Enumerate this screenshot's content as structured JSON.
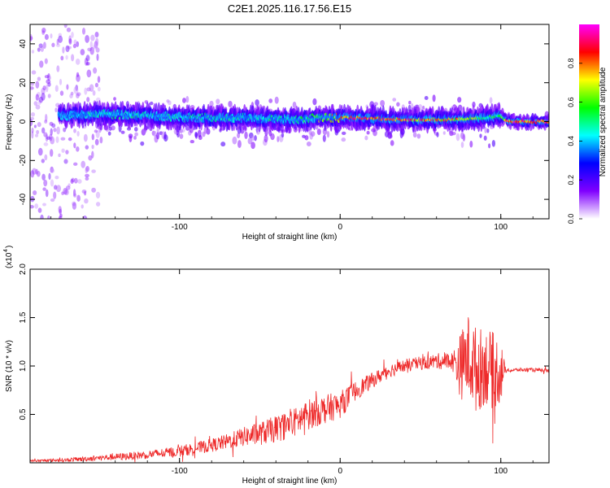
{
  "figure_title": "C2E1.2025.116.17.56.E15",
  "chart_data": [
    {
      "type": "heatmap",
      "title": "",
      "xlabel": "Height of straight line (km)",
      "ylabel": "Frequency (Hz)",
      "xlim": [
        -193,
        130
      ],
      "ylim": [
        -50,
        50
      ],
      "x_ticks": [
        -100,
        0,
        100
      ],
      "y_ticks": [
        -40,
        -20,
        0,
        20,
        40
      ],
      "colorbar": {
        "label": "Normalized spectral amplitude",
        "range": [
          0,
          1
        ],
        "ticks": [
          "0.0",
          "0.2",
          "0.4",
          "0.6",
          "0.8"
        ],
        "colors": [
          "#ffffff",
          "#8000ff",
          "#0000ff",
          "#00ffff",
          "#00ff00",
          "#ffff00",
          "#ff0000",
          "#ff00ff"
        ]
      },
      "ridge": [
        {
          "x": -170,
          "freq": 3,
          "amp": 0.45
        },
        {
          "x": -150,
          "freq": 4,
          "amp": 0.5
        },
        {
          "x": -120,
          "freq": 3,
          "amp": 0.5
        },
        {
          "x": -90,
          "freq": 2,
          "amp": 0.5
        },
        {
          "x": -60,
          "freq": 2,
          "amp": 0.5
        },
        {
          "x": -30,
          "freq": 1,
          "amp": 0.5
        },
        {
          "x": -10,
          "freq": 2,
          "amp": 0.7
        },
        {
          "x": 10,
          "freq": 2,
          "amp": 0.95
        },
        {
          "x": 40,
          "freq": 1,
          "amp": 0.95
        },
        {
          "x": 70,
          "freq": 1,
          "amp": 0.85
        },
        {
          "x": 90,
          "freq": 2,
          "amp": 0.6
        },
        {
          "x": 100,
          "freq": 3,
          "amp": 0.55
        },
        {
          "x": 105,
          "freq": 0,
          "amp": 0.95
        },
        {
          "x": 130,
          "freq": 0,
          "amp": 0.95
        }
      ]
    },
    {
      "type": "line",
      "title": "",
      "xlabel": "Height of straight line (km)",
      "ylabel": "SNR (10 * v/v)",
      "y_multiplier": "(x10",
      "y_multiplier_exp": "4",
      "xlim": [
        -193,
        130
      ],
      "ylim": [
        0,
        2.0
      ],
      "x_ticks": [
        -100,
        0,
        100
      ],
      "y_ticks": [
        0.5,
        1.0,
        1.5,
        2.0
      ],
      "y_tick_labels": [
        "0.5",
        "1.0",
        "1.5",
        "2.0"
      ],
      "series": [
        {
          "color": "#ee2a2a",
          "x": [
            -193,
            -170,
            -150,
            -130,
            -110,
            -100,
            -90,
            -80,
            -70,
            -60,
            -50,
            -40,
            -30,
            -20,
            -10,
            0,
            10,
            20,
            30,
            40,
            50,
            60,
            70,
            75,
            80,
            85,
            90,
            95,
            100,
            103,
            110,
            120,
            130
          ],
          "y": [
            0.02,
            0.03,
            0.05,
            0.07,
            0.1,
            0.12,
            0.15,
            0.18,
            0.22,
            0.27,
            0.3,
            0.35,
            0.4,
            0.5,
            0.55,
            0.6,
            0.75,
            0.85,
            0.95,
            1.0,
            1.03,
            1.05,
            1.05,
            1.0,
            1.1,
            0.95,
            1.0,
            0.95,
            0.95,
            0.95,
            0.96,
            0.96,
            0.95
          ],
          "noise": [
            0.01,
            0.02,
            0.03,
            0.04,
            0.05,
            0.06,
            0.06,
            0.07,
            0.08,
            0.1,
            0.12,
            0.14,
            0.15,
            0.16,
            0.15,
            0.14,
            0.1,
            0.08,
            0.07,
            0.07,
            0.07,
            0.08,
            0.1,
            0.35,
            0.45,
            0.45,
            0.4,
            0.4,
            0.35,
            0.02,
            0.02,
            0.02,
            0.02
          ]
        }
      ]
    }
  ]
}
